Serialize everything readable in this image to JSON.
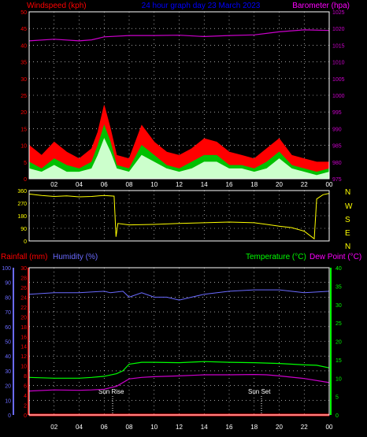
{
  "header": {
    "windspeed_label": "Windspeed (kph)",
    "title": "24 hour graph day 23 March 2023",
    "barometer_label": "Barometer (hpa)"
  },
  "lower_header": {
    "rainfall_label": "Rainfall (mm)",
    "humidity_label": "Humidity (%)",
    "temperature_label": "Temperature (°C)",
    "dewpoint_label": "Dew Point (°C)"
  },
  "compass": [
    "N",
    "W",
    "S",
    "E",
    "N"
  ],
  "annotations": {
    "sunrise": "Sun Rise",
    "sunset": "Sun Set"
  },
  "colors": {
    "wind_gust": "#ff0000",
    "wind_avg": "#00c000",
    "wind_speed": "#ccffcc",
    "barometer": "#cc00cc",
    "direction": "#ffff00",
    "humidity": "#6a6aff",
    "temperature": "#00ff00",
    "dewpoint": "#cc00cc",
    "rainfall": "#ff0000",
    "grid": "#ffffff"
  },
  "chart_data": [
    {
      "type": "line",
      "panel": "wind_barometer",
      "title": "24 hour graph day 23 March 2023",
      "x_ticks": [
        "02",
        "04",
        "06",
        "08",
        "10",
        "12",
        "14",
        "16",
        "18",
        "20",
        "22",
        "00"
      ],
      "y_left": {
        "label": "Windspeed (kph)",
        "range": [
          0,
          50
        ],
        "ticks": [
          0,
          5,
          10,
          15,
          20,
          25,
          30,
          35,
          40,
          45,
          50
        ]
      },
      "y_right": {
        "label": "Barometer (hpa)",
        "range": [
          975,
          1025
        ],
        "ticks": [
          975,
          980,
          985,
          990,
          995,
          1000,
          1005,
          1010,
          1015,
          1020,
          1025
        ]
      },
      "grid": true,
      "series": [
        {
          "name": "Barometer",
          "axis": "right",
          "x": [
            0,
            2,
            4,
            5,
            6,
            8,
            10,
            12,
            14,
            16,
            18,
            20,
            22,
            24
          ],
          "values": [
            1016.3,
            1016.8,
            1016.3,
            1016.6,
            1017.5,
            1017.9,
            1017.9,
            1018.0,
            1017.6,
            1017.9,
            1018.1,
            1019.0,
            1019.6,
            1019.4
          ]
        },
        {
          "axis": "left",
          "x": [
            0,
            1,
            2,
            3,
            4,
            5,
            5.5,
            6,
            6.5,
            7,
            8,
            9,
            10,
            11,
            12,
            13,
            14,
            15,
            16,
            17,
            18,
            19,
            20,
            21,
            22,
            23,
            24
          ],
          "values": [
            10,
            7,
            11,
            8,
            6,
            9,
            14,
            22,
            15,
            7,
            6,
            16,
            11,
            8,
            7,
            9,
            12,
            11,
            8,
            7,
            6,
            9,
            12,
            7,
            6,
            5,
            5
          ]
        },
        {
          "axis": "left",
          "x": [
            0,
            1,
            2,
            3,
            4,
            5,
            5.5,
            6,
            6.5,
            7,
            8,
            9,
            10,
            11,
            12,
            13,
            14,
            15,
            16,
            17,
            18,
            19,
            20,
            21,
            22,
            23,
            24
          ],
          "values": [
            5,
            3,
            6,
            4,
            3,
            5,
            10,
            16,
            11,
            4,
            3,
            10,
            7,
            4,
            3,
            5,
            7,
            7,
            4,
            4,
            3,
            5,
            8,
            4,
            3,
            2,
            3
          ]
        },
        {
          "axis": "left",
          "x": [
            0,
            1,
            2,
            3,
            4,
            5,
            5.5,
            6,
            6.5,
            7,
            8,
            9,
            10,
            11,
            12,
            13,
            14,
            15,
            16,
            17,
            18,
            19,
            20,
            21,
            22,
            23,
            24
          ],
          "values": [
            3,
            2,
            4,
            2,
            2,
            3,
            7,
            12,
            8,
            3,
            2,
            7,
            5,
            3,
            2,
            3,
            5,
            5,
            3,
            3,
            2,
            3,
            6,
            3,
            2,
            1,
            2
          ]
        }
      ]
    },
    {
      "type": "line",
      "panel": "wind_direction",
      "y_range": [
        0,
        360
      ],
      "y_ticks": [
        0,
        90,
        180,
        270,
        360
      ],
      "series": [
        {
          "axis": "left",
          "x": [
            0,
            1,
            2,
            3,
            4,
            5,
            6,
            6.8,
            6.95,
            7.1,
            8,
            10,
            12,
            14,
            16,
            18,
            19,
            20,
            21,
            22,
            22.8,
            23,
            23.5,
            24
          ],
          "values": [
            335,
            325,
            318,
            322,
            315,
            318,
            325,
            320,
            30,
            125,
            115,
            118,
            125,
            130,
            135,
            130,
            118,
            105,
            95,
            70,
            15,
            300,
            330,
            340
          ]
        }
      ]
    },
    {
      "type": "line",
      "panel": "temperature_humidity",
      "x_ticks": [
        "02",
        "04",
        "06",
        "08",
        "10",
        "12",
        "14",
        "16",
        "18",
        "20",
        "22",
        "00"
      ],
      "y_left_humidity": {
        "label": "Humidity (%)",
        "range": [
          0,
          100
        ],
        "ticks": [
          0,
          10,
          20,
          30,
          40,
          50,
          60,
          70,
          80,
          90,
          100
        ]
      },
      "y_left_rainfall": {
        "label": "Rainfall (mm)",
        "range": [
          0,
          30
        ],
        "ticks": [
          0,
          2,
          4,
          6,
          8,
          10,
          12,
          14,
          16,
          18,
          20,
          22,
          24,
          26,
          28,
          30
        ]
      },
      "y_right": {
        "label": "Temperature (°C)",
        "range": [
          0,
          40
        ],
        "ticks": [
          0,
          5,
          10,
          15,
          20,
          25,
          30,
          35,
          40
        ]
      },
      "grid": true,
      "series": [
        {
          "axis": "humidity",
          "x": [
            0,
            2,
            4,
            6,
            6.5,
            7.5,
            8,
            9,
            10,
            11,
            12,
            13,
            14,
            16,
            18,
            20,
            22,
            24
          ],
          "values": [
            82,
            83,
            83,
            84,
            83,
            84,
            80,
            83,
            80,
            80,
            78,
            80,
            82,
            84,
            85,
            85,
            83,
            84
          ]
        },
        {
          "axis": "temperature",
          "x": [
            0,
            2,
            4,
            5,
            6,
            7,
            7.5,
            8,
            9,
            10,
            12,
            14,
            16,
            18,
            20,
            22,
            23,
            24
          ],
          "values": [
            10.2,
            10.0,
            10.0,
            10.2,
            10.5,
            11.2,
            12.0,
            13.8,
            14.3,
            14.3,
            14.2,
            14.5,
            14.3,
            14.2,
            14.0,
            13.6,
            13.5,
            12.8
          ]
        },
        {
          "axis": "temperature",
          "x": [
            0,
            2,
            4,
            5,
            6,
            7,
            8,
            9,
            10,
            12,
            14,
            16,
            18,
            19,
            20,
            22,
            24
          ],
          "values": [
            6.5,
            6.8,
            6.7,
            6.8,
            7.0,
            7.8,
            9.8,
            10.2,
            10.4,
            10.6,
            10.9,
            10.9,
            11.0,
            10.9,
            10.6,
            9.9,
            8.8
          ]
        },
        {
          "axis": "rainfall",
          "x": [
            0,
            24
          ],
          "values": [
            0,
            0
          ]
        }
      ]
    }
  ]
}
